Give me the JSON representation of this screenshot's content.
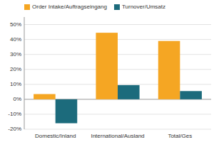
{
  "chart_data": {
    "type": "bar",
    "categories": [
      "Domestic/Inland",
      "International/Ausland",
      "Total/Ges"
    ],
    "series": [
      {
        "name": "Order Intake/Auftragseingang",
        "color": "#F5A623",
        "values": [
          3.5,
          44.5,
          39.0
        ]
      },
      {
        "name": "Turnover/Umsatz",
        "color": "#1C6B7C",
        "values": [
          -16.0,
          9.5,
          5.5
        ]
      }
    ],
    "ylim": [
      -20,
      55
    ],
    "yticks": [
      {
        "value": -20,
        "label": "-20%"
      },
      {
        "value": -10,
        "label": "-10%"
      },
      {
        "value": 0,
        "label": "0%"
      },
      {
        "value": 10,
        "label": "10%"
      },
      {
        "value": 20,
        "label": "20%"
      },
      {
        "value": 30,
        "label": "30%"
      },
      {
        "value": 40,
        "label": "40%"
      },
      {
        "value": 50,
        "label": "50%"
      }
    ],
    "grid": true,
    "legend": "upper left"
  }
}
